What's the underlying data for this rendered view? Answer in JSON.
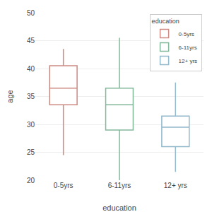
{
  "chart_data": {
    "type": "box",
    "xlabel": "education",
    "ylabel": "age",
    "legend_title": "education",
    "categories": [
      "0-5yrs",
      "6-11yrs",
      "12+ yrs"
    ],
    "series": [
      {
        "name": "0-5yrs",
        "color": "#cd8a82",
        "whislo": 24.5,
        "q1": 33.5,
        "med": 36.5,
        "q3": 40.5,
        "whishi": 43.5
      },
      {
        "name": "6-11yrs",
        "color": "#82b89a",
        "whislo": 20.0,
        "q1": 29.0,
        "med": 33.5,
        "q3": 36.5,
        "whishi": 45.5
      },
      {
        "name": "12+ yrs",
        "color": "#92b8cc",
        "whislo": 21.5,
        "q1": 26.0,
        "med": 29.5,
        "q3": 31.5,
        "whishi": 37.5
      }
    ],
    "ylim": [
      20,
      50
    ],
    "yticks": [
      20,
      25,
      30,
      35,
      40,
      45,
      50
    ],
    "grid": true,
    "legend": "upper right"
  }
}
